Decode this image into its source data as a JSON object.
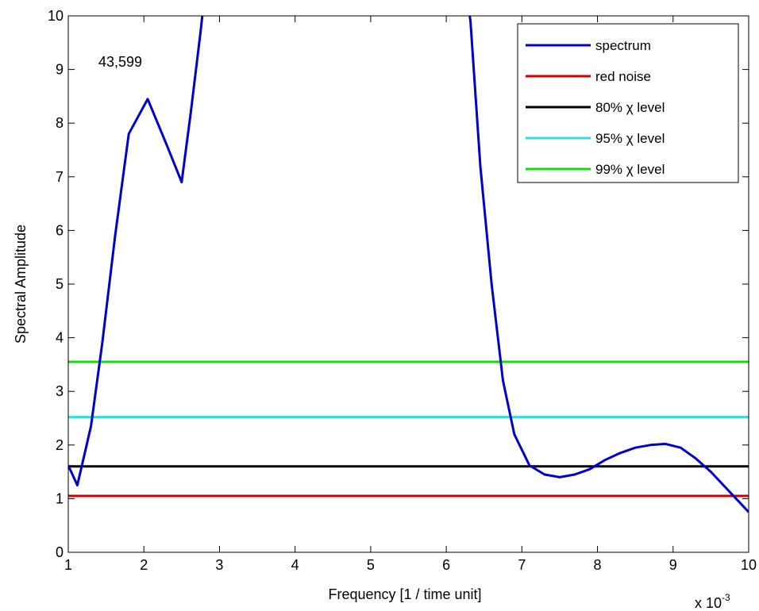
{
  "chart_data": {
    "type": "line",
    "xlabel": "Frequency [1 / time unit]",
    "ylabel": "Spectral Amplitude",
    "x_multiplier": "x 10",
    "x_multiplier_exp": "-3",
    "xlim": [
      1,
      10
    ],
    "ylim": [
      0,
      10
    ],
    "xticks": [
      1,
      2,
      3,
      4,
      5,
      6,
      7,
      8,
      9,
      10
    ],
    "yticks": [
      0,
      1,
      2,
      3,
      4,
      5,
      6,
      7,
      8,
      9,
      10
    ],
    "grid": false,
    "legend_position": "top-right",
    "annotation": {
      "text": "43,599",
      "x": 2.4,
      "y": 9.1
    },
    "series": [
      {
        "name": "spectrum",
        "color": "#0000cc",
        "x": [
          1.0,
          1.12,
          1.3,
          1.45,
          1.62,
          1.8,
          2.05,
          2.3,
          2.5,
          2.62,
          2.75,
          2.82,
          6.25,
          6.32,
          6.45,
          6.6,
          6.75,
          6.9,
          7.1,
          7.3,
          7.5,
          7.7,
          7.9,
          8.1,
          8.3,
          8.5,
          8.7,
          8.9,
          9.1,
          9.3,
          9.5,
          9.7,
          9.9,
          10.0
        ],
        "y": [
          1.62,
          1.25,
          2.35,
          3.9,
          5.9,
          7.8,
          8.45,
          7.6,
          6.9,
          8.2,
          9.7,
          10.6,
          10.6,
          9.9,
          7.2,
          5.0,
          3.2,
          2.2,
          1.62,
          1.45,
          1.4,
          1.45,
          1.55,
          1.72,
          1.85,
          1.95,
          2.0,
          2.02,
          1.95,
          1.75,
          1.5,
          1.2,
          0.9,
          0.75
        ]
      },
      {
        "name": "red noise",
        "color": "#cc0000",
        "x": [
          1,
          10
        ],
        "y": [
          1.05,
          1.05
        ]
      },
      {
        "name": "80% χ   level",
        "color": "#000000",
        "x": [
          1,
          10
        ],
        "y": [
          1.6,
          1.6
        ]
      },
      {
        "name": "95% χ   level",
        "color": "#33dddd",
        "x": [
          1,
          10
        ],
        "y": [
          2.52,
          2.52
        ]
      },
      {
        "name": "99% χ   level",
        "color": "#11dd11",
        "x": [
          1,
          10
        ],
        "y": [
          3.55,
          3.55
        ]
      }
    ]
  }
}
